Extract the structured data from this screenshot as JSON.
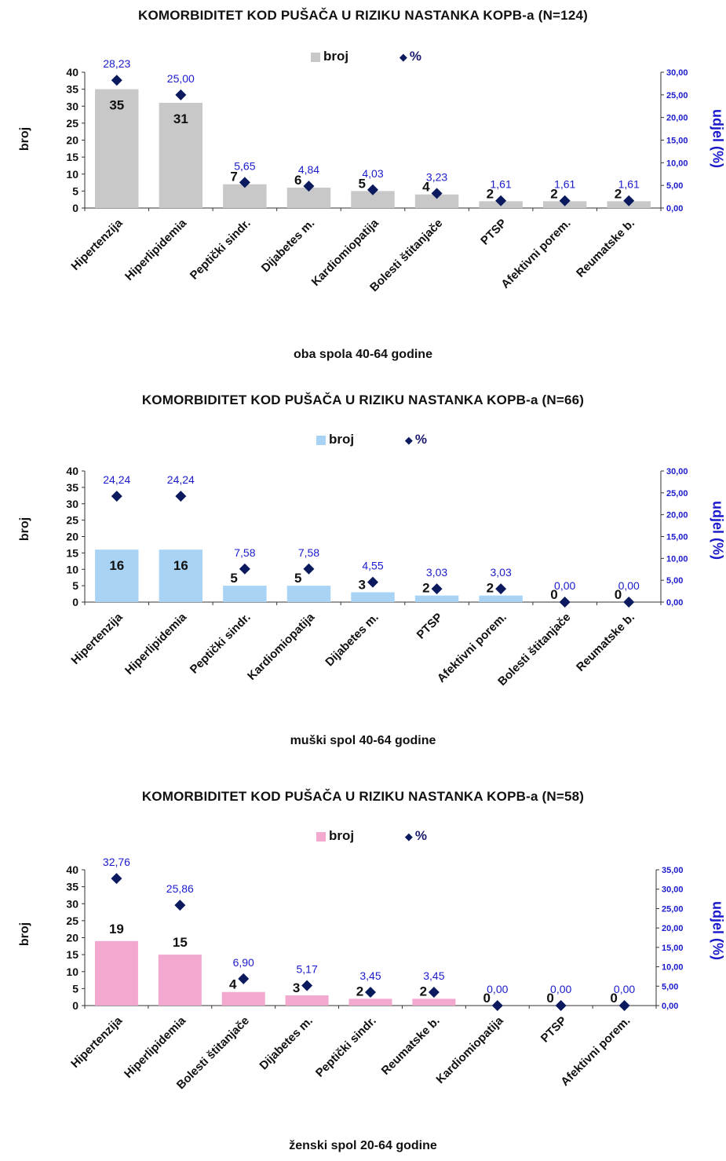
{
  "chart_data": [
    {
      "type": "bar",
      "title": "KOMORBIDITET KOD PUŠAČA U RIZIKU NASTANKA KOPB-a   (N=124)",
      "subtitle": "oba spola 40-64 godine",
      "ylabel": "broj",
      "y2label": "udjel (%)",
      "ylim": [
        0,
        40
      ],
      "yticks": [
        0,
        5,
        10,
        15,
        20,
        25,
        30,
        35,
        40
      ],
      "y2lim": [
        0,
        30
      ],
      "y2ticks": [
        "0,00",
        "5,00",
        "10,00",
        "15,00",
        "20,00",
        "25,00",
        "30,00"
      ],
      "legend": {
        "bar": "broj",
        "marker": "%"
      },
      "bar_color": "#c8c8c8",
      "categories": [
        "Hipertenzija",
        "Hiperlipidemia",
        "Peptički sindr.",
        "Dijabetes m.",
        "Kardiomiopatija",
        "Bolesti štitanjače",
        "PTSP",
        "Afektivni porem.",
        "Reumatske b."
      ],
      "series": [
        {
          "name": "broj",
          "type": "bar",
          "values": [
            35,
            31,
            7,
            6,
            5,
            4,
            2,
            2,
            2
          ],
          "labels": [
            "35",
            "31",
            "7",
            "6",
            "5",
            "4",
            "2",
            "2",
            "2"
          ]
        },
        {
          "name": "%",
          "type": "scatter",
          "axis": "y2",
          "values": [
            28.23,
            25.0,
            5.65,
            4.84,
            4.03,
            3.23,
            1.61,
            1.61,
            1.61
          ],
          "labels": [
            "28,23",
            "25,00",
            "5,65",
            "4,84",
            "4,03",
            "3,23",
            "1,61",
            "1,61",
            "1,61"
          ]
        }
      ]
    },
    {
      "type": "bar",
      "title": "KOMORBIDITET KOD PUŠAČA U RIZIKU NASTANKA KOPB-a   (N=66)",
      "subtitle": "muški spol 40-64 godine",
      "ylabel": "broj",
      "y2label": "udjel (%)",
      "ylim": [
        0,
        40
      ],
      "yticks": [
        0,
        5,
        10,
        15,
        20,
        25,
        30,
        35,
        40
      ],
      "y2lim": [
        0,
        30
      ],
      "y2ticks": [
        "0,00",
        "5,00",
        "10,00",
        "15,00",
        "20,00",
        "25,00",
        "30,00"
      ],
      "legend": {
        "bar": "broj",
        "marker": "%"
      },
      "bar_color": "#a9d3f5",
      "categories": [
        "Hipertenzija",
        "Hiperlipidemia",
        "Peptički sindr.",
        "Kardiomiopatija",
        "Dijabetes m.",
        "PTSP",
        "Afektivni porem.",
        "Bolesti štitanjače",
        "Reumatske b."
      ],
      "series": [
        {
          "name": "broj",
          "type": "bar",
          "values": [
            16,
            16,
            5,
            5,
            3,
            2,
            2,
            0,
            0
          ],
          "labels": [
            "16",
            "16",
            "5",
            "5",
            "3",
            "2",
            "2",
            "0",
            "0"
          ]
        },
        {
          "name": "%",
          "type": "scatter",
          "axis": "y2",
          "values": [
            24.24,
            24.24,
            7.58,
            7.58,
            4.55,
            3.03,
            3.03,
            0.0,
            0.0
          ],
          "labels": [
            "24,24",
            "24,24",
            "7,58",
            "7,58",
            "4,55",
            "3,03",
            "3,03",
            "0,00",
            "0,00"
          ]
        }
      ]
    },
    {
      "type": "bar",
      "title": "KOMORBIDITET KOD PUŠAČA U RIZIKU NASTANKA KOPB-a    (N=58)",
      "subtitle": "ženski spol 20-64 godine",
      "ylabel": "broj",
      "y2label": "udjel (%)",
      "ylim": [
        0,
        40
      ],
      "yticks": [
        0,
        5,
        10,
        15,
        20,
        25,
        30,
        35,
        40
      ],
      "y2lim": [
        0,
        35
      ],
      "y2ticks": [
        "0,00",
        "5,00",
        "10,00",
        "15,00",
        "20,00",
        "25,00",
        "30,00",
        "35,00"
      ],
      "legend": {
        "bar": "broj",
        "marker": "%"
      },
      "bar_color": "#f3a8d0",
      "categories": [
        "Hipertenzija",
        "Hiperlipidemia",
        "Bolesti štitanjače",
        "Dijabetes m.",
        "Peptički sindr.",
        "Reumatske b.",
        "Kardiomiopatija",
        "PTSP",
        "Afektivni porem."
      ],
      "series": [
        {
          "name": "broj",
          "type": "bar",
          "values": [
            19,
            15,
            4,
            3,
            2,
            2,
            0,
            0,
            0
          ],
          "labels": [
            "19",
            "15",
            "4",
            "3",
            "2",
            "2",
            "0",
            "0",
            "0"
          ]
        },
        {
          "name": "%",
          "type": "scatter",
          "axis": "y2",
          "values": [
            32.76,
            25.86,
            6.9,
            5.17,
            3.45,
            3.45,
            0.0,
            0.0,
            0.0
          ],
          "labels": [
            "32,76",
            "25,86",
            "6,90",
            "5,17",
            "3,45",
            "3,45",
            "0,00",
            "0,00",
            "0,00"
          ]
        }
      ]
    }
  ]
}
